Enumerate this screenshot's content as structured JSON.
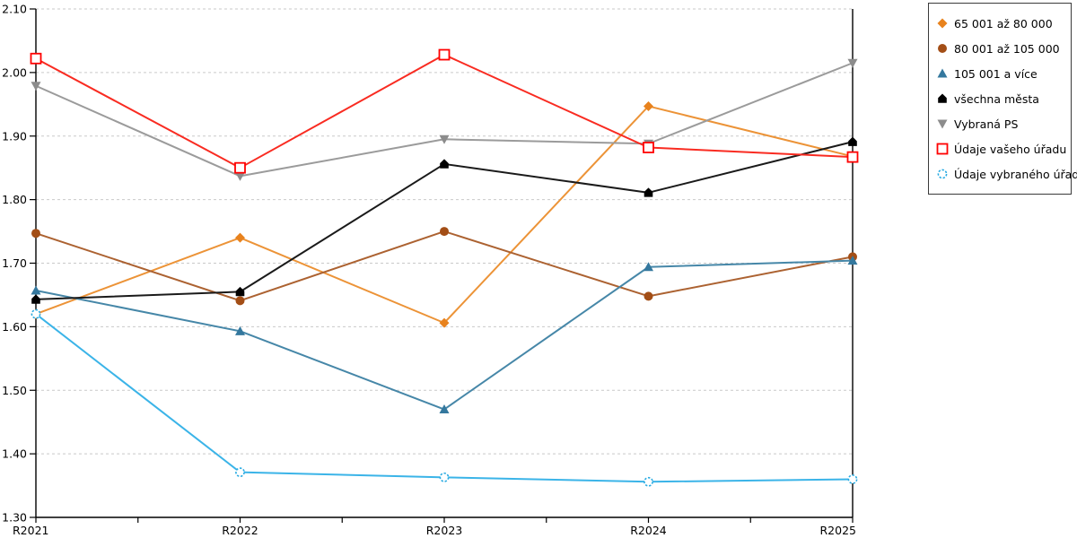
{
  "chart_data": {
    "type": "line",
    "title": "",
    "xlabel": "",
    "ylabel": "",
    "x_categories": [
      "R2021",
      "R2022",
      "R2023",
      "R2024",
      "R2025"
    ],
    "y_axis": {
      "min": 1.3,
      "max": 2.1,
      "step": 0.1,
      "decimals": 2
    },
    "grid": "horizontal-dashed",
    "legend_position": "top-right",
    "series": [
      {
        "name": "65 001 až 80 000",
        "marker": "diamond",
        "color": "#E8821D",
        "line_color": "#EC9337",
        "values": [
          1.62,
          1.74,
          1.606,
          1.947,
          1.868
        ]
      },
      {
        "name": "80 001 až 105 000",
        "marker": "circle",
        "color": "#A34E16",
        "line_color": "#AC6231",
        "values": [
          1.747,
          1.641,
          1.75,
          1.648,
          1.71
        ]
      },
      {
        "name": "105 001 a více",
        "marker": "triangle-up",
        "color": "#34789E",
        "line_color": "#4687A8",
        "values": [
          1.657,
          1.593,
          1.47,
          1.694,
          1.704
        ]
      },
      {
        "name": "všechna města",
        "marker": "pentagon-up",
        "color": "#000000",
        "line_color": "#1A1A1A",
        "values": [
          1.643,
          1.655,
          1.856,
          1.811,
          1.891
        ]
      },
      {
        "name": "Vybraná PS",
        "marker": "triangle-down",
        "color": "#8C8C8C",
        "line_color": "#9B9B9B",
        "values": [
          1.979,
          1.837,
          1.895,
          1.888,
          2.015
        ]
      },
      {
        "name": "Údaje vašeho úřadu",
        "marker": "square-open",
        "color": "#FF0000",
        "line_color": "#F92B21",
        "values": [
          2.022,
          1.85,
          2.028,
          1.882,
          1.867
        ]
      },
      {
        "name": "Údaje vybraného úřadu",
        "marker": "circle-open-dashed",
        "color": "#29ABE2",
        "line_color": "#3BB4E8",
        "values": [
          1.62,
          1.371,
          1.363,
          1.356,
          1.36
        ]
      }
    ],
    "colors": {
      "gridline": "#C9C9C9",
      "axis": "#000000",
      "background": "#FFFFFF"
    }
  }
}
